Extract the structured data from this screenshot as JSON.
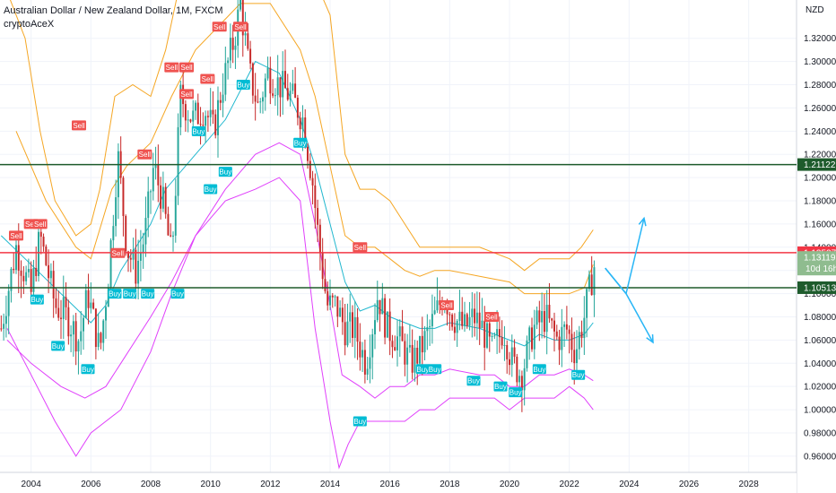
{
  "header": {
    "title": "Australian Dollar / New Zealand Dollar, 1M, FXCM",
    "indicator": "cryptoAceX"
  },
  "price_axis": {
    "currency": "NZD",
    "tag_current_price": "1.13119",
    "tag_countdown": "10d 16h"
  },
  "chart_data": {
    "type": "candlestick",
    "title": "Australian Dollar / New Zealand Dollar, 1M, FXCM",
    "y_ticks": [
      "1.32000",
      "1.30000",
      "1.28000",
      "1.26000",
      "1.24000",
      "1.22000",
      "1.20000",
      "1.18000",
      "1.16000",
      "1.14000",
      "1.12000",
      "1.10000",
      "1.08000",
      "1.06000",
      "1.04000",
      "1.02000",
      "1.00000",
      "0.98000",
      "0.96000"
    ],
    "ylim": [
      0.946,
      1.353
    ],
    "x_ticks": [
      "2004",
      "2006",
      "2008",
      "2010",
      "2012",
      "2014",
      "2016",
      "2018",
      "2020",
      "2022",
      "2024",
      "2026",
      "2028"
    ],
    "xlim": [
      2002.96,
      2029.6
    ],
    "price_path": [
      [
        2003.0,
        1.07
      ],
      [
        2003.5,
        1.14
      ],
      [
        2004.0,
        1.1
      ],
      [
        2004.3,
        1.15
      ],
      [
        2004.8,
        1.09
      ],
      [
        2005.2,
        1.08
      ],
      [
        2005.6,
        1.06
      ],
      [
        2005.9,
        1.1
      ],
      [
        2006.3,
        1.05
      ],
      [
        2006.6,
        1.12
      ],
      [
        2006.9,
        1.22
      ],
      [
        2007.2,
        1.14
      ],
      [
        2007.5,
        1.12
      ],
      [
        2007.8,
        1.15
      ],
      [
        2008.1,
        1.21
      ],
      [
        2008.4,
        1.18
      ],
      [
        2008.7,
        1.13
      ],
      [
        2009.0,
        1.27
      ],
      [
        2009.4,
        1.25
      ],
      [
        2009.8,
        1.26
      ],
      [
        2010.1,
        1.24
      ],
      [
        2010.4,
        1.28
      ],
      [
        2010.8,
        1.32
      ],
      [
        2011.0,
        1.35
      ],
      [
        2011.3,
        1.29
      ],
      [
        2011.6,
        1.26
      ],
      [
        2011.9,
        1.29
      ],
      [
        2012.3,
        1.28
      ],
      [
        2012.7,
        1.27
      ],
      [
        2013.1,
        1.25
      ],
      [
        2013.4,
        1.2
      ],
      [
        2013.6,
        1.15
      ],
      [
        2013.9,
        1.09
      ],
      [
        2014.2,
        1.09
      ],
      [
        2014.5,
        1.07
      ],
      [
        2014.8,
        1.07
      ],
      [
        2015.2,
        1.04
      ],
      [
        2015.6,
        1.1
      ],
      [
        2015.9,
        1.07
      ],
      [
        2016.3,
        1.06
      ],
      [
        2016.7,
        1.04
      ],
      [
        2017.0,
        1.05
      ],
      [
        2017.5,
        1.08
      ],
      [
        2017.8,
        1.1
      ],
      [
        2018.1,
        1.08
      ],
      [
        2018.5,
        1.07
      ],
      [
        2018.8,
        1.08
      ],
      [
        2019.1,
        1.07
      ],
      [
        2019.4,
        1.05
      ],
      [
        2019.8,
        1.07
      ],
      [
        2020.1,
        1.04
      ],
      [
        2020.4,
        1.03
      ],
      [
        2020.8,
        1.07
      ],
      [
        2021.2,
        1.08
      ],
      [
        2021.6,
        1.06
      ],
      [
        2021.9,
        1.07
      ],
      [
        2022.2,
        1.05
      ],
      [
        2022.5,
        1.08
      ],
      [
        2022.8,
        1.12
      ],
      [
        2022.9,
        1.131
      ]
    ],
    "bands": [
      {
        "name": "outer-upper",
        "color": "#f5a623",
        "points": [
          [
            2003.2,
            1.36
          ],
          [
            2003.8,
            1.32
          ],
          [
            2004.3,
            1.24
          ],
          [
            2004.8,
            1.18
          ],
          [
            2005.5,
            1.15
          ],
          [
            2006.0,
            1.16
          ],
          [
            2006.3,
            1.19
          ],
          [
            2006.8,
            1.27
          ],
          [
            2007.4,
            1.28
          ],
          [
            2008.0,
            1.27
          ],
          [
            2008.5,
            1.31
          ],
          [
            2009.0,
            1.37
          ],
          [
            2011.0,
            1.4
          ],
          [
            2012.0,
            1.39
          ],
          [
            2013.0,
            1.38
          ],
          [
            2013.5,
            1.37
          ],
          [
            2014.0,
            1.34
          ],
          [
            2014.5,
            1.22
          ],
          [
            2015.0,
            1.19
          ],
          [
            2015.5,
            1.19
          ],
          [
            2016.0,
            1.18
          ],
          [
            2016.5,
            1.16
          ],
          [
            2017.0,
            1.14
          ],
          [
            2017.5,
            1.14
          ],
          [
            2018.0,
            1.14
          ],
          [
            2019.0,
            1.14
          ],
          [
            2020.0,
            1.13
          ],
          [
            2020.5,
            1.12
          ],
          [
            2021.0,
            1.13
          ],
          [
            2021.5,
            1.13
          ],
          [
            2022.0,
            1.13
          ],
          [
            2022.4,
            1.14
          ],
          [
            2022.8,
            1.155
          ]
        ]
      },
      {
        "name": "inner-upper",
        "color": "#f5a623",
        "points": [
          [
            2003.5,
            1.24
          ],
          [
            2004.5,
            1.18
          ],
          [
            2005.5,
            1.14
          ],
          [
            2006.0,
            1.13
          ],
          [
            2006.7,
            1.19
          ],
          [
            2007.2,
            1.21
          ],
          [
            2008.0,
            1.23
          ],
          [
            2008.7,
            1.27
          ],
          [
            2009.5,
            1.31
          ],
          [
            2011.0,
            1.35
          ],
          [
            2012.0,
            1.35
          ],
          [
            2013.0,
            1.31
          ],
          [
            2013.5,
            1.27
          ],
          [
            2014.0,
            1.21
          ],
          [
            2014.5,
            1.15
          ],
          [
            2015.0,
            1.14
          ],
          [
            2015.5,
            1.14
          ],
          [
            2016.0,
            1.13
          ],
          [
            2016.5,
            1.12
          ],
          [
            2017.0,
            1.115
          ],
          [
            2017.5,
            1.12
          ],
          [
            2018.0,
            1.12
          ],
          [
            2019.0,
            1.115
          ],
          [
            2020.0,
            1.11
          ],
          [
            2020.5,
            1.1
          ],
          [
            2021.0,
            1.1
          ],
          [
            2021.5,
            1.1
          ],
          [
            2022.0,
            1.1
          ],
          [
            2022.5,
            1.105
          ],
          [
            2022.8,
            1.125
          ]
        ]
      },
      {
        "name": "basis",
        "color": "#22b8cf",
        "points": [
          [
            2003.0,
            1.15
          ],
          [
            2004.0,
            1.125
          ],
          [
            2005.0,
            1.1
          ],
          [
            2006.0,
            1.075
          ],
          [
            2006.5,
            1.09
          ],
          [
            2007.0,
            1.12
          ],
          [
            2008.0,
            1.16
          ],
          [
            2008.5,
            1.19
          ],
          [
            2009.5,
            1.22
          ],
          [
            2010.5,
            1.25
          ],
          [
            2011.5,
            1.3
          ],
          [
            2012.3,
            1.29
          ],
          [
            2013.0,
            1.25
          ],
          [
            2013.5,
            1.21
          ],
          [
            2014.0,
            1.16
          ],
          [
            2014.5,
            1.11
          ],
          [
            2015.0,
            1.085
          ],
          [
            2015.5,
            1.09
          ],
          [
            2016.0,
            1.08
          ],
          [
            2016.5,
            1.075
          ],
          [
            2017.0,
            1.07
          ],
          [
            2017.5,
            1.07
          ],
          [
            2018.0,
            1.075
          ],
          [
            2019.0,
            1.07
          ],
          [
            2019.5,
            1.065
          ],
          [
            2020.0,
            1.06
          ],
          [
            2020.5,
            1.055
          ],
          [
            2021.0,
            1.065
          ],
          [
            2021.5,
            1.06
          ],
          [
            2022.0,
            1.06
          ],
          [
            2022.5,
            1.065
          ],
          [
            2022.8,
            1.075
          ]
        ]
      },
      {
        "name": "inner-lower",
        "color": "#e040fb",
        "points": [
          [
            2003.2,
            1.06
          ],
          [
            2004.0,
            1.04
          ],
          [
            2005.0,
            1.02
          ],
          [
            2005.8,
            1.01
          ],
          [
            2006.5,
            1.02
          ],
          [
            2007.0,
            1.04
          ],
          [
            2008.0,
            1.08
          ],
          [
            2008.7,
            1.11
          ],
          [
            2009.5,
            1.15
          ],
          [
            2010.5,
            1.19
          ],
          [
            2011.5,
            1.22
          ],
          [
            2012.3,
            1.23
          ],
          [
            2013.0,
            1.22
          ],
          [
            2013.5,
            1.16
          ],
          [
            2014.0,
            1.09
          ],
          [
            2014.4,
            1.03
          ],
          [
            2015.0,
            1.02
          ],
          [
            2015.5,
            1.01
          ],
          [
            2016.0,
            1.02
          ],
          [
            2016.5,
            1.02
          ],
          [
            2017.0,
            1.03
          ],
          [
            2017.5,
            1.03
          ],
          [
            2018.0,
            1.035
          ],
          [
            2019.0,
            1.03
          ],
          [
            2019.5,
            1.03
          ],
          [
            2020.0,
            1.02
          ],
          [
            2020.5,
            1.02
          ],
          [
            2021.0,
            1.03
          ],
          [
            2021.5,
            1.03
          ],
          [
            2022.0,
            1.035
          ],
          [
            2022.5,
            1.03
          ],
          [
            2022.8,
            1.025
          ]
        ]
      },
      {
        "name": "outer-lower",
        "color": "#e040fb",
        "points": [
          [
            2003.2,
            1.07
          ],
          [
            2004.0,
            1.03
          ],
          [
            2004.8,
            0.99
          ],
          [
            2005.5,
            0.96
          ],
          [
            2006.0,
            0.98
          ],
          [
            2007.0,
            1.0
          ],
          [
            2008.0,
            1.05
          ],
          [
            2008.7,
            1.1
          ],
          [
            2009.5,
            1.15
          ],
          [
            2010.5,
            1.18
          ],
          [
            2011.5,
            1.19
          ],
          [
            2012.3,
            1.2
          ],
          [
            2013.0,
            1.18
          ],
          [
            2013.5,
            1.07
          ],
          [
            2014.0,
            0.99
          ],
          [
            2014.3,
            0.95
          ],
          [
            2014.6,
            0.97
          ],
          [
            2015.0,
            0.99
          ],
          [
            2015.5,
            0.99
          ],
          [
            2016.0,
            0.99
          ],
          [
            2016.5,
            0.99
          ],
          [
            2017.0,
            1.0
          ],
          [
            2017.5,
            1.0
          ],
          [
            2018.0,
            1.01
          ],
          [
            2019.0,
            1.01
          ],
          [
            2019.5,
            1.01
          ],
          [
            2020.0,
            1.0
          ],
          [
            2020.5,
            1.01
          ],
          [
            2021.0,
            1.01
          ],
          [
            2021.5,
            1.01
          ],
          [
            2022.0,
            1.02
          ],
          [
            2022.5,
            1.01
          ],
          [
            2022.8,
            1.0
          ]
        ]
      }
    ],
    "horizontal_levels": [
      {
        "value": 1.21122,
        "label": "1.21122",
        "color": "#1e5b2c"
      },
      {
        "value": 1.13527,
        "label": "1.13527",
        "color": "#f23645"
      },
      {
        "value": 1.10513,
        "label": "1.10513",
        "color": "#1e5b2c"
      }
    ],
    "signals": [
      {
        "type": "Sell",
        "x": 2003.5,
        "y": 1.15
      },
      {
        "type": "Sell",
        "x": 2004.0,
        "y": 1.16
      },
      {
        "type": "Sell",
        "x": 2004.3,
        "y": 1.16
      },
      {
        "type": "Sell",
        "x": 2005.6,
        "y": 1.245
      },
      {
        "type": "Sell",
        "x": 2006.9,
        "y": 1.135
      },
      {
        "type": "Sell",
        "x": 2007.8,
        "y": 1.22
      },
      {
        "type": "Sell",
        "x": 2008.7,
        "y": 1.295
      },
      {
        "type": "Sell",
        "x": 2009.2,
        "y": 1.295
      },
      {
        "type": "Sell",
        "x": 2009.9,
        "y": 1.285
      },
      {
        "type": "Sell",
        "x": 2009.2,
        "y": 1.272
      },
      {
        "type": "Sell",
        "x": 2010.3,
        "y": 1.33
      },
      {
        "type": "Sell",
        "x": 2011.0,
        "y": 1.33
      },
      {
        "type": "Sell",
        "x": 2015.0,
        "y": 1.14
      },
      {
        "type": "Sell",
        "x": 2017.9,
        "y": 1.09
      },
      {
        "type": "Sell",
        "x": 2019.4,
        "y": 1.08
      },
      {
        "type": "Buy",
        "x": 2004.2,
        "y": 1.095
      },
      {
        "type": "Buy",
        "x": 2004.9,
        "y": 1.055
      },
      {
        "type": "Buy",
        "x": 2005.9,
        "y": 1.035
      },
      {
        "type": "Buy",
        "x": 2007.3,
        "y": 1.1
      },
      {
        "type": "Buy",
        "x": 2006.8,
        "y": 1.1
      },
      {
        "type": "Buy",
        "x": 2007.9,
        "y": 1.1
      },
      {
        "type": "Buy",
        "x": 2008.9,
        "y": 1.1
      },
      {
        "type": "Buy",
        "x": 2009.6,
        "y": 1.24
      },
      {
        "type": "Buy",
        "x": 2010.0,
        "y": 1.19
      },
      {
        "type": "Buy",
        "x": 2010.5,
        "y": 1.205
      },
      {
        "type": "Buy",
        "x": 2011.1,
        "y": 1.28
      },
      {
        "type": "Buy",
        "x": 2013.0,
        "y": 1.23
      },
      {
        "type": "Buy",
        "x": 2015.0,
        "y": 0.99
      },
      {
        "type": "Buy",
        "x": 2017.1,
        "y": 1.035
      },
      {
        "type": "Buy",
        "x": 2017.5,
        "y": 1.035
      },
      {
        "type": "Buy",
        "x": 2018.8,
        "y": 1.025
      },
      {
        "type": "Buy",
        "x": 2019.7,
        "y": 1.02
      },
      {
        "type": "Buy",
        "x": 2020.2,
        "y": 1.015
      },
      {
        "type": "Buy",
        "x": 2021.0,
        "y": 1.035
      },
      {
        "type": "Buy",
        "x": 2022.3,
        "y": 1.03
      }
    ],
    "projection_arrows": [
      {
        "points": [
          [
            2023.2,
            1.122
          ],
          [
            2023.9,
            1.1
          ],
          [
            2024.5,
            1.165
          ]
        ]
      },
      {
        "points": [
          [
            2023.2,
            1.122
          ],
          [
            2023.9,
            1.1
          ],
          [
            2024.8,
            1.058
          ]
        ]
      }
    ]
  }
}
